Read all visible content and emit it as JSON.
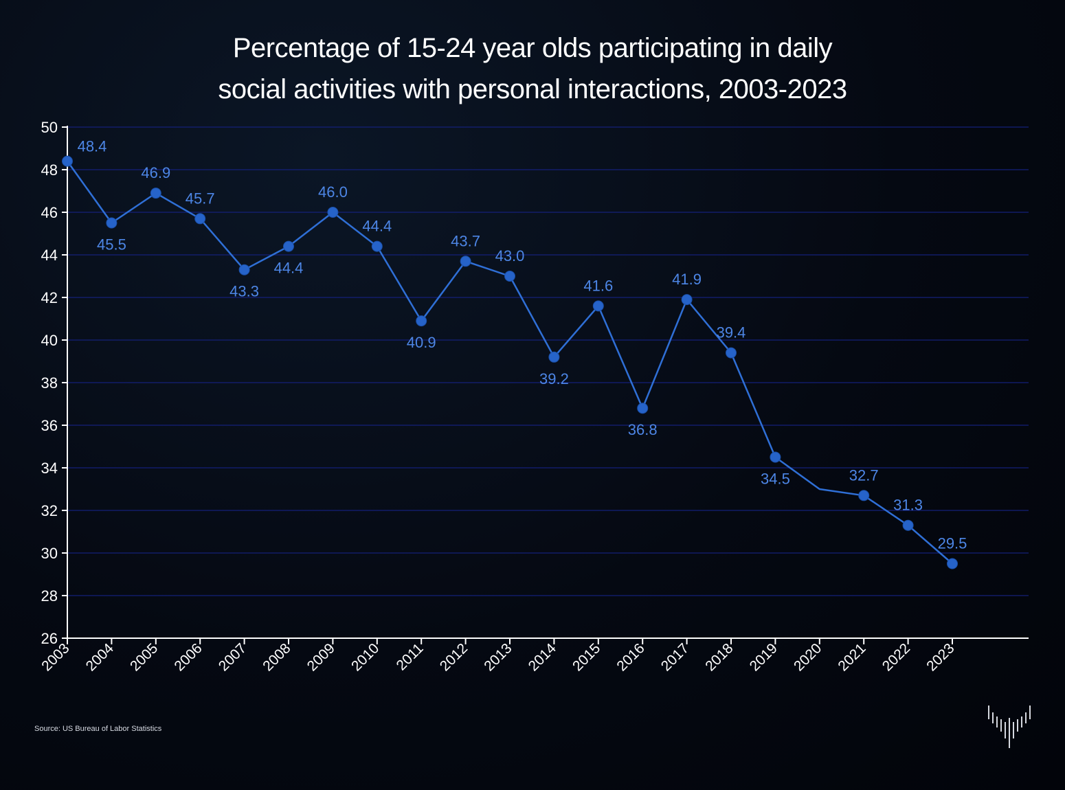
{
  "chart_data": {
    "type": "line",
    "title_lines": [
      "Percentage of 15-24 year olds participating in daily",
      "social activities with personal interactions, 2003-2023"
    ],
    "x": [
      "2003",
      "2004",
      "2005",
      "2006",
      "2007",
      "2008",
      "2009",
      "2010",
      "2011",
      "2012",
      "2013",
      "2014",
      "2015",
      "2016",
      "2017",
      "2018",
      "2019",
      "2020",
      "2021",
      "2022",
      "2023"
    ],
    "values": [
      48.4,
      45.5,
      46.9,
      45.7,
      43.3,
      44.4,
      46.0,
      44.4,
      40.9,
      43.7,
      43.0,
      39.2,
      41.6,
      36.8,
      41.9,
      39.4,
      34.5,
      33.0,
      32.7,
      31.3,
      29.5
    ],
    "data_labels": [
      "48.4",
      "45.5",
      "46.9",
      "45.7",
      "43.3",
      "44.4",
      "46.0",
      "44.4",
      "40.9",
      "43.7",
      "43.0",
      "39.2",
      "41.6",
      "36.8",
      "41.9",
      "39.4",
      "34.5",
      "",
      "32.7",
      "31.3",
      "29.5"
    ],
    "label_position": [
      "above",
      "below",
      "above",
      "above",
      "below",
      "below",
      "above",
      "above",
      "below",
      "above",
      "above",
      "below",
      "above",
      "below",
      "above",
      "above",
      "below",
      "none",
      "above",
      "above",
      "above"
    ],
    "markers": [
      true,
      true,
      true,
      true,
      true,
      true,
      true,
      true,
      true,
      true,
      true,
      true,
      true,
      true,
      true,
      true,
      true,
      false,
      true,
      true,
      true
    ],
    "ylim": [
      26,
      50
    ],
    "yticks": [
      "26",
      "28",
      "30",
      "32",
      "34",
      "36",
      "38",
      "40",
      "42",
      "44",
      "46",
      "48",
      "50"
    ],
    "grid": true,
    "line_color": "#2f6fd6",
    "marker_color": "#2663c9",
    "label_color": "#4d86e6",
    "grid_color": "#14207a"
  },
  "footer": {
    "source": "Source: US Bureau of Labor Statistics",
    "logo_icon": "vertical-bars-logo-icon"
  }
}
